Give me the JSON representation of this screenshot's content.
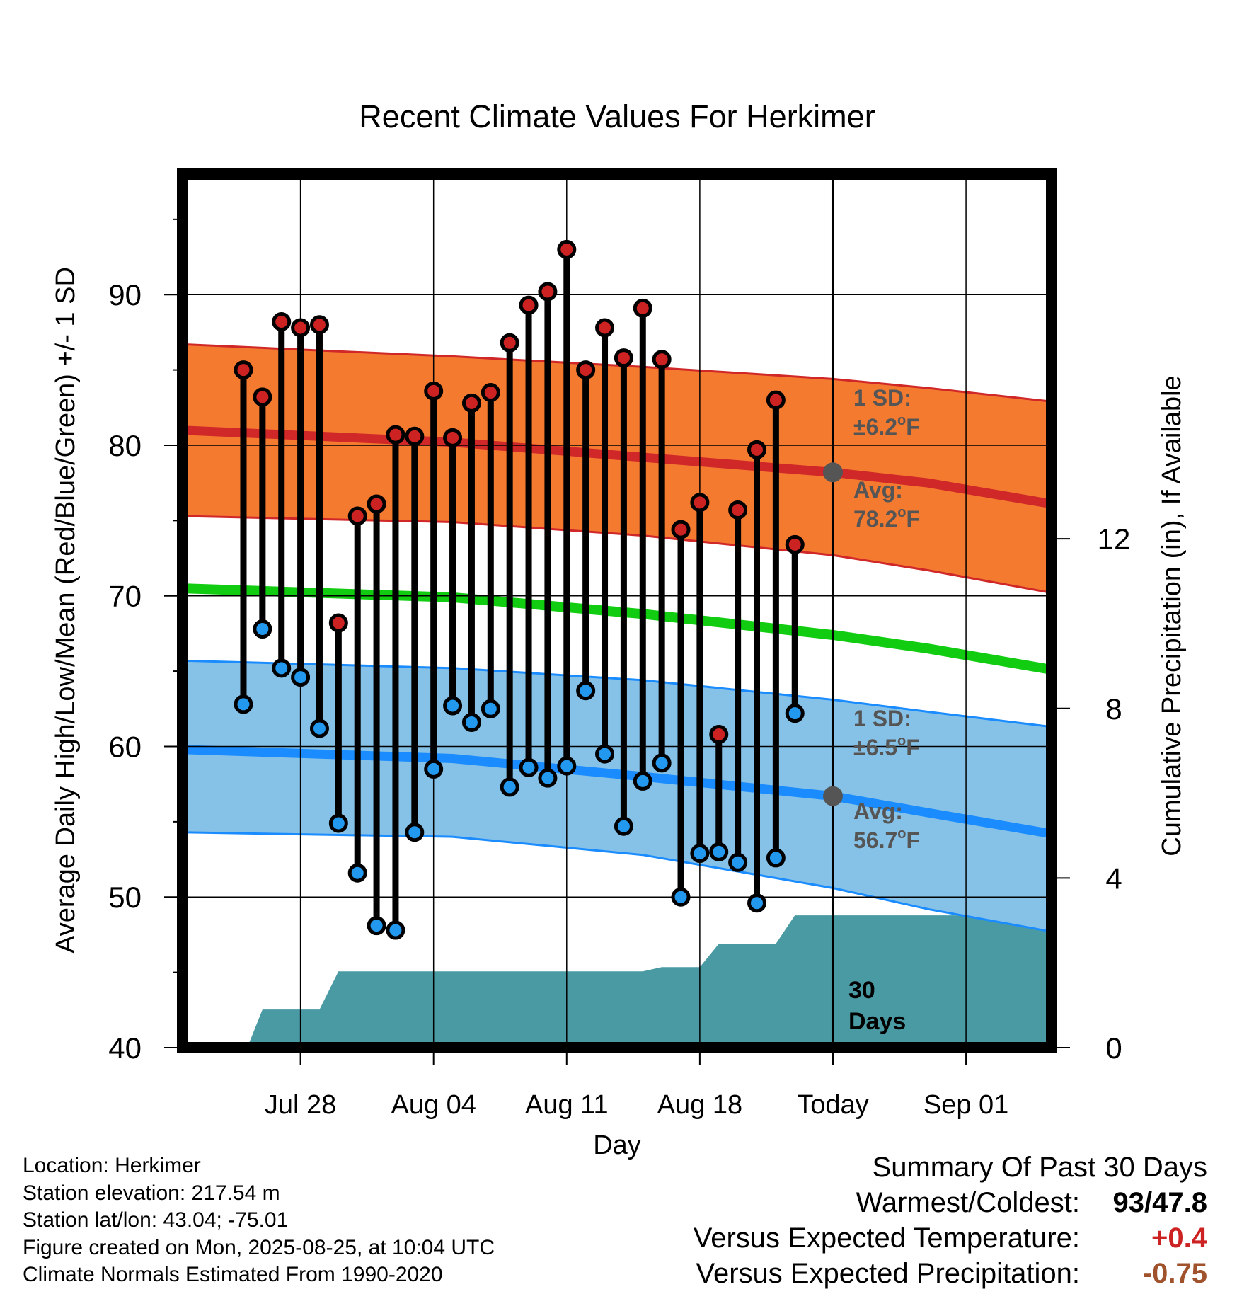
{
  "chart_data": {
    "type": "line",
    "title": "Recent Climate Values For Herkimer",
    "xlabel": "Day",
    "ylabel": "Average Daily High/Low/Mean (Red/Blue/Green) +/- 1 SD",
    "y2label": "Cumulative Precipitation (in), If Available",
    "ylim": [
      40,
      98
    ],
    "y2lim": [
      0,
      20.6
    ],
    "yticks": [
      40,
      50,
      60,
      70,
      80,
      90
    ],
    "y2ticks": [
      0,
      4,
      8,
      12
    ],
    "xrange_days": [
      -34.2,
      11.5
    ],
    "xticks": [
      {
        "day": -28,
        "label": "Jul 28"
      },
      {
        "day": -21,
        "label": "Aug 04"
      },
      {
        "day": -14,
        "label": "Aug 11"
      },
      {
        "day": -7,
        "label": "Aug 18"
      },
      {
        "day": 0,
        "label": "Today"
      },
      {
        "day": 7,
        "label": "Sep 01"
      }
    ],
    "today_label": "Today",
    "period_label": [
      "30",
      "Days"
    ],
    "normals": {
      "high_mean": {
        "x": [
          -34.2,
          -20,
          -10,
          0,
          5,
          11.5
        ],
        "y": [
          81.0,
          80.2,
          79.2,
          78.2,
          77.5,
          76.1
        ]
      },
      "high_band_upper": {
        "x": [
          -34.2,
          -20,
          -10,
          0,
          5,
          11.5
        ],
        "y": [
          86.7,
          85.9,
          85.2,
          84.4,
          83.8,
          82.9
        ]
      },
      "high_band_lower": {
        "x": [
          -34.2,
          -20,
          -10,
          0,
          5,
          11.5
        ],
        "y": [
          75.3,
          74.9,
          74.0,
          72.7,
          71.7,
          70.2
        ]
      },
      "mean": {
        "x": [
          -34.2,
          -20,
          -10,
          0,
          5,
          11.5
        ],
        "y": [
          70.5,
          69.9,
          68.8,
          67.4,
          66.5,
          65.1
        ]
      },
      "low_mean": {
        "x": [
          -34.2,
          -20,
          -10,
          0,
          5,
          11.5
        ],
        "y": [
          59.8,
          59.2,
          58.0,
          56.7,
          55.6,
          54.2
        ]
      },
      "low_band_upper": {
        "x": [
          -34.2,
          -20,
          -10,
          0,
          5,
          11.5
        ],
        "y": [
          65.7,
          65.2,
          64.4,
          63.1,
          62.3,
          61.3
        ]
      },
      "low_band_lower": {
        "x": [
          -34.2,
          -20,
          -10,
          0,
          5,
          11.5
        ],
        "y": [
          54.3,
          54.0,
          52.8,
          50.6,
          49.2,
          47.7
        ]
      }
    },
    "series": [
      {
        "name": "High",
        "color": "#cc2222",
        "x": [
          -31,
          -30,
          -29,
          -28,
          -27,
          -26,
          -25,
          -24,
          -23,
          -22,
          -21,
          -20,
          -19,
          -18,
          -17,
          -16,
          -15,
          -14,
          -13,
          -12,
          -11,
          -10,
          -9,
          -8,
          -7,
          -6,
          -5,
          -4,
          -3,
          -2,
          -1
        ],
        "values": [
          85.0,
          83.2,
          88.2,
          87.8,
          88.0,
          68.2,
          75.3,
          76.1,
          80.7,
          80.6,
          83.6,
          80.5,
          82.8,
          83.5,
          86.8,
          89.3,
          90.2,
          93.0,
          85.0,
          87.8,
          85.8,
          89.1,
          85.7,
          74.4,
          76.2,
          60.8,
          75.7,
          79.7,
          83.0,
          73.4,
          null
        ]
      },
      {
        "name": "Low",
        "color": "#2299ee",
        "x": [
          -31,
          -30,
          -29,
          -28,
          -27,
          -26,
          -25,
          -24,
          -23,
          -22,
          -21,
          -20,
          -19,
          -18,
          -17,
          -16,
          -15,
          -14,
          -13,
          -12,
          -11,
          -10,
          -9,
          -8,
          -7,
          -6,
          -5,
          -4,
          -3,
          -2,
          -1
        ],
        "values": [
          62.8,
          67.8,
          65.2,
          64.6,
          61.2,
          54.9,
          51.6,
          48.1,
          47.8,
          54.3,
          58.5,
          62.7,
          61.6,
          62.5,
          57.3,
          58.6,
          57.9,
          58.7,
          63.7,
          59.5,
          54.7,
          57.7,
          58.9,
          50.0,
          52.9,
          53.0,
          52.3,
          49.6,
          52.6,
          62.2,
          null
        ]
      },
      {
        "name": "Cumulative Precipitation",
        "color": "#4a9aa4",
        "x": [
          -30.8,
          -30,
          -27,
          -26,
          -25,
          -10,
          -9,
          -8,
          -7,
          -6,
          -5,
          -4,
          -3,
          -2,
          11.5
        ],
        "values": [
          0,
          0.9,
          0.9,
          1.8,
          1.8,
          1.8,
          1.9,
          1.9,
          1.9,
          2.45,
          2.45,
          2.45,
          2.45,
          3.12,
          3.12
        ]
      }
    ],
    "annotations": {
      "high_sd_label": [
        "1 SD:",
        "±6.2",
        "o",
        "F"
      ],
      "high_avg_label": [
        "Avg:",
        "78.2",
        "o",
        "F"
      ],
      "low_sd_label": [
        "1 SD:",
        "±6.5",
        "o",
        "F"
      ],
      "low_avg_label": [
        "Avg:",
        "56.7",
        "o",
        "F"
      ],
      "today_high_avg": 78.2,
      "today_low_avg": 56.7
    },
    "grid": true
  },
  "footer": {
    "location": "Location: Herkimer",
    "elevation": "Station elevation: 217.54 m",
    "latlon": "Station lat/lon: 43.04; -75.01",
    "created": "Figure created on Mon, 2025-08-25, at 10:04 UTC",
    "normals": "Climate Normals Estimated From 1990-2020"
  },
  "summary": {
    "title": "Summary Of Past 30 Days",
    "warmest_label": "Warmest/Coldest:",
    "warmest_value": "93/47.8",
    "temp_label": "Versus Expected Temperature:",
    "temp_value": "+0.4",
    "temp_color": "#cc2222",
    "precip_label": "Versus Expected Precipitation:",
    "precip_value": "-0.75",
    "precip_color": "#a0522d"
  },
  "colors": {
    "high_band": "#f47a30",
    "high_line": "#d02828",
    "mean_line": "#11cc11",
    "low_band": "#86c2e8",
    "low_line": "#1a8cff",
    "precip": "#4a9aa4",
    "avg_dot": "#555555",
    "annotation": "#555555"
  }
}
